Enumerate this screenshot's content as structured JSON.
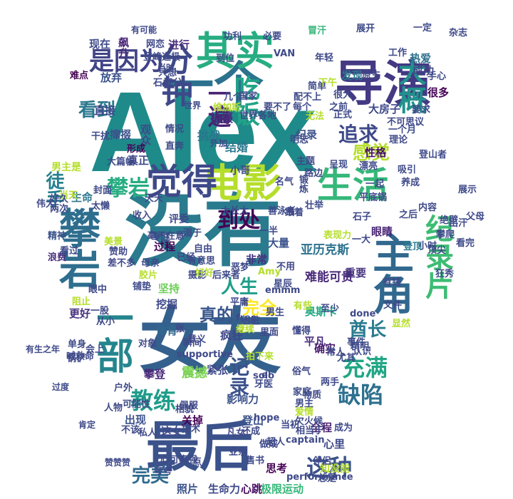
{
  "wordcloud": {
    "words": [
      {
        "text": "Alex",
        "color": "#1f8a8a",
        "big": true
      },
      {
        "text": "没有",
        "color": "#2a7b8e"
      },
      {
        "text": "女友",
        "color": "#34608d"
      },
      {
        "text": "最后",
        "color": "#3b528b"
      },
      {
        "text": "一个",
        "color": "#2c728e"
      },
      {
        "text": "导演",
        "color": "#443983"
      },
      {
        "text": "其实",
        "color": "#27ad81"
      },
      {
        "text": "电影",
        "color": "#b5de2b"
      },
      {
        "text": "觉得",
        "color": "#3e4989"
      },
      {
        "text": "生活",
        "color": "#35b779"
      },
      {
        "text": "攀岩",
        "color": "#2e6e8e"
      },
      {
        "text": "主角",
        "color": "#31688e"
      },
      {
        "text": "一部",
        "color": "#25858e"
      },
      {
        "text": "分钟",
        "color": "#3e4989"
      },
      {
        "text": "是因为",
        "color": "#414487"
      },
      {
        "text": "大概",
        "color": "#21918c"
      },
      {
        "text": "吃饭",
        "color": "#20a486"
      },
      {
        "text": "纪录片",
        "color": "#3dbc74"
      },
      {
        "text": "追求",
        "color": "#3e4989"
      },
      {
        "text": "看到",
        "color": "#2a788e"
      },
      {
        "text": "攀岩",
        "color": "#27ad81"
      },
      {
        "text": "徒手",
        "color": "#277f8e"
      },
      {
        "text": "感觉",
        "color": "#b5de2b"
      },
      {
        "text": "到处",
        "color": "#440154"
      },
      {
        "text": "人生",
        "color": "#1f9e89"
      },
      {
        "text": "完全",
        "color": "#fde725"
      },
      {
        "text": "记录",
        "color": "#3b528b"
      },
      {
        "text": "真的",
        "color": "#39568c"
      },
      {
        "text": "酋长",
        "color": "#2a7b8e"
      },
      {
        "text": "充满",
        "color": "#21a685"
      },
      {
        "text": "缺陷",
        "color": "#2d708e"
      },
      {
        "text": "教练",
        "color": "#1e9c89"
      },
      {
        "text": "这种",
        "color": "#3b528b"
      },
      {
        "text": "完美",
        "color": "#306a8e"
      },
      {
        "text": "亚历克斯",
        "color": "#2c728e"
      },
      {
        "text": "奥斯卡",
        "color": "#22a884"
      },
      {
        "text": "难能可贵",
        "color": "#482878"
      },
      {
        "text": "疯狂",
        "color": "#404688"
      },
      {
        "text": "震撼",
        "color": "#7ad151"
      },
      {
        "text": "一遍",
        "color": "#482173"
      },
      {
        "text": "现在",
        "color": "#3e4a89"
      },
      {
        "text": "飙升",
        "color": "#482677"
      },
      {
        "text": "进行",
        "color": "#472c7a"
      },
      {
        "text": "放弃",
        "color": "#3b528b"
      },
      {
        "text": "发现",
        "color": "#2a788e"
      },
      {
        "text": "成功",
        "color": "#3f4788"
      },
      {
        "text": "热爱",
        "color": "#2d708e"
      },
      {
        "text": "很多",
        "color": "#440154"
      },
      {
        "text": "拍摄",
        "color": "#472d7b"
      },
      {
        "text": "挑战",
        "color": "#2b758e"
      },
      {
        "text": "结婚",
        "color": "#2a788e"
      },
      {
        "text": "纪录",
        "color": "#3b528b"
      },
      {
        "text": "性格",
        "color": "#471063"
      },
      {
        "text": "大房子",
        "color": "#3e4989"
      },
      {
        "text": "真正",
        "color": "#3e4989"
      },
      {
        "text": "男主是",
        "color": "#b5de2b"
      },
      {
        "text": "生命",
        "color": "#2a788e"
      },
      {
        "text": "重要",
        "color": "#46327e"
      },
      {
        "text": "眼睛",
        "color": "#482475"
      },
      {
        "text": "过程",
        "color": "#440154"
      },
      {
        "text": "大量",
        "color": "#3b528b"
      },
      {
        "text": "非常",
        "color": "#46307e"
      },
      {
        "text": "坚持",
        "color": "#6ece58"
      },
      {
        "text": "挖掘",
        "color": "#3e4989"
      },
      {
        "text": "体育",
        "color": "#31688e"
      },
      {
        "text": "平凡",
        "color": "#472f7d"
      },
      {
        "text": "确实",
        "color": "#481b6d"
      },
      {
        "text": "紧张",
        "color": "#3e4989"
      },
      {
        "text": "攀登",
        "color": "#482878"
      },
      {
        "text": "出现",
        "color": "#3b528b"
      },
      {
        "text": "全程",
        "color": "#481b6d"
      },
      {
        "text": "心里",
        "color": "#3e4989"
      },
      {
        "text": "这女",
        "color": "#3e4989"
      },
      {
        "text": "关掉",
        "color": "#440154"
      },
      {
        "text": "登山",
        "color": "#3b528b"
      },
      {
        "text": "影响力",
        "color": "#3b528b"
      },
      {
        "text": "照片",
        "color": "#3b528b"
      },
      {
        "text": "生命力",
        "color": "#3e4989"
      },
      {
        "text": "心跳",
        "color": "#471063"
      },
      {
        "text": "极限运动",
        "color": "#35b779"
      },
      {
        "text": "思考",
        "color": "#440154"
      },
      {
        "text": "知没能",
        "color": "#b5de2b"
      },
      {
        "text": "更好",
        "color": "#46327e"
      },
      {
        "text": "直接",
        "color": "#3e4989"
      },
      {
        "text": "难点",
        "color": "#440154"
      },
      {
        "text": "观众",
        "color": "#3e4989"
      },
      {
        "text": "撺掇",
        "color": "#3b528b"
      },
      {
        "text": "干扰",
        "color": "#3e4989"
      },
      {
        "text": "形成",
        "color": "#440154"
      },
      {
        "text": "精神",
        "color": "#3b528b"
      },
      {
        "text": "浪费",
        "color": "#472d7b"
      },
      {
        "text": "看过",
        "color": "#3e4989"
      },
      {
        "text": "赞助",
        "color": "#3e4989"
      },
      {
        "text": "差不多",
        "color": "#3e4989"
      },
      {
        "text": "母亲",
        "color": "#3e4989"
      },
      {
        "text": "胶片",
        "color": "#b5de2b"
      },
      {
        "text": "摄影",
        "color": "#3e4989"
      },
      {
        "text": "后来者",
        "color": "#3e4989"
      },
      {
        "text": "瞬间",
        "color": "#3e4989"
      },
      {
        "text": "铺垫",
        "color": "#3e4989"
      },
      {
        "text": "阻止",
        "color": "#b5de2b"
      },
      {
        "text": "对象",
        "color": "#3e4989"
      },
      {
        "text": "人物",
        "color": "#3e4989"
      },
      {
        "text": "技术",
        "color": "#3e4989"
      },
      {
        "text": "超人",
        "color": "#3e4989"
      },
      {
        "text": "点",
        "color": "#3e4989"
      },
      {
        "text": "成为",
        "color": "#3e4989"
      },
      {
        "text": "工作",
        "color": "#3e4989"
      },
      {
        "text": "一定",
        "color": "#3e4989"
      },
      {
        "text": "内容",
        "color": "#3e4989"
      },
      {
        "text": "顶尖",
        "color": "#3e4989"
      },
      {
        "text": "攀爬",
        "color": "#3e4989"
      },
      {
        "text": "小时",
        "color": "#3e4989"
      },
      {
        "text": "登顶",
        "color": "#2a788e"
      },
      {
        "text": "冒汗",
        "color": "#35b779"
      },
      {
        "text": "年轻",
        "color": "#3e4989"
      },
      {
        "text": "VAN",
        "color": "#3e4989"
      },
      {
        "text": "小哥",
        "color": "#3e4989"
      },
      {
        "text": "大篇幅",
        "color": "#3e4989"
      },
      {
        "text": "评委",
        "color": "#3e4989"
      },
      {
        "text": "溺于",
        "color": "#3e4989"
      },
      {
        "text": "毫不在意",
        "color": "#3e4989"
      },
      {
        "text": "太长太",
        "color": "#3e4989"
      },
      {
        "text": "善泳者",
        "color": "#3e4989"
      },
      {
        "text": "表现力",
        "color": "#b5de2b"
      },
      {
        "text": "懂得",
        "color": "#3e4989"
      },
      {
        "text": "事件",
        "color": "#3e4989"
      },
      {
        "text": "两手",
        "color": "#3e4989"
      },
      {
        "text": "常人",
        "color": "#3e4989"
      },
      {
        "text": "尤其",
        "color": "#3e4989"
      },
      {
        "text": "不用",
        "color": "#3e4989"
      },
      {
        "text": "星辰",
        "color": "#3e4989"
      },
      {
        "text": "意义",
        "color": "#3e4989"
      },
      {
        "text": "物质",
        "color": "#3e4989"
      },
      {
        "text": "牙医",
        "color": "#3e4989"
      },
      {
        "text": "相当于",
        "color": "#3e4989"
      },
      {
        "text": "有钱",
        "color": "#3e4989"
      },
      {
        "text": "文件",
        "color": "#3e4989"
      },
      {
        "text": "显然",
        "color": "#b5de2b"
      },
      {
        "text": "看完",
        "color": "#3e4989"
      },
      {
        "text": "出汗",
        "color": "#3e4989"
      },
      {
        "text": "石子",
        "color": "#3e4989"
      },
      {
        "text": "要求",
        "color": "#3e4989"
      },
      {
        "text": "手心",
        "color": "#3e4989"
      },
      {
        "text": "原生",
        "color": "#3e4989"
      },
      {
        "text": "杂志",
        "color": "#3e4989"
      },
      {
        "text": "展开",
        "color": "#3e4989"
      },
      {
        "text": "必要",
        "color": "#3e4989"
      },
      {
        "text": "五分",
        "color": "#3e4989"
      },
      {
        "text": "情况",
        "color": "#3e4989"
      },
      {
        "text": "无法",
        "color": "#b5de2b"
      },
      {
        "text": "每个",
        "color": "#3e4989"
      },
      {
        "text": "简单",
        "color": "#3e4989"
      },
      {
        "text": "漂亮",
        "color": "#3e4989"
      },
      {
        "text": "吸引",
        "color": "#3e4989"
      },
      {
        "text": "养成",
        "color": "#3e4989"
      },
      {
        "text": "登山者",
        "color": "#3e4989"
      },
      {
        "text": "一个月",
        "color": "#3e4989"
      },
      {
        "text": "理论",
        "color": "#3e4989"
      },
      {
        "text": "很大",
        "color": "#3e4989"
      },
      {
        "text": "下午",
        "color": "#b5de2b"
      },
      {
        "text": "之前",
        "color": "#3e4989"
      },
      {
        "text": "正式",
        "color": "#3e4989"
      },
      {
        "text": "主题",
        "color": "#3e4989"
      },
      {
        "text": "呈现",
        "color": "#3e4989"
      },
      {
        "text": "一起",
        "color": "#3e4989"
      },
      {
        "text": "平底锅",
        "color": "#3e4989"
      },
      {
        "text": "之后",
        "color": "#3e4989"
      },
      {
        "text": "一大",
        "color": "#3e4989"
      },
      {
        "text": "路边",
        "color": "#3e4989"
      },
      {
        "text": "锻炼",
        "color": "#3e4989"
      },
      {
        "text": "一半",
        "color": "#3e4989"
      },
      {
        "text": "美景",
        "color": "#b5de2b"
      },
      {
        "text": "专注",
        "color": "#3e4989"
      },
      {
        "text": "收入",
        "color": "#3e4989"
      },
      {
        "text": "太懒",
        "color": "#3e4989"
      },
      {
        "text": "当天",
        "color": "#b5de2b"
      },
      {
        "text": "封面",
        "color": "#3e4989"
      },
      {
        "text": "好久",
        "color": "#3e4989"
      },
      {
        "text": "伟大",
        "color": "#3e4989"
      },
      {
        "text": "两次",
        "color": "#3e4989"
      },
      {
        "text": "眼中",
        "color": "#3e4989"
      },
      {
        "text": "一股",
        "color": "#3e4989"
      },
      {
        "text": "从小",
        "color": "#3e4989"
      },
      {
        "text": "会上",
        "color": "#3e4989"
      },
      {
        "text": "单身",
        "color": "#3e4989"
      },
      {
        "text": "锅铲",
        "color": "#3e4989"
      },
      {
        "text": "喊救命",
        "color": "#3e4989"
      },
      {
        "text": "户外",
        "color": "#3e4989"
      },
      {
        "text": "可能性",
        "color": "#3e4989"
      },
      {
        "text": "不该",
        "color": "#3e4989"
      },
      {
        "text": "私人",
        "color": "#3e4989"
      },
      {
        "text": "凡女",
        "color": "#3e4989"
      },
      {
        "text": "还成",
        "color": "#3e4989"
      },
      {
        "text": "当初",
        "color": "#3e4989"
      },
      {
        "text": "欠火候",
        "color": "#3e4989"
      },
      {
        "text": "业余",
        "color": "#3e4989"
      },
      {
        "text": "做成",
        "color": "#3e4989"
      },
      {
        "text": "心可真强",
        "color": "#3e4989"
      },
      {
        "text": "夸夸",
        "color": "#3e4989"
      },
      {
        "text": "售书",
        "color": "#3e4989"
      },
      {
        "text": "伴侣",
        "color": "#3e4989"
      },
      {
        "text": "总是",
        "color": "#3e4989"
      },
      {
        "text": "performance",
        "color": "#3e4989"
      },
      {
        "text": "captain",
        "color": "#3e4989"
      },
      {
        "text": "supportive",
        "color": "#3e4989"
      },
      {
        "text": "solo",
        "color": "#3e4989"
      },
      {
        "text": "free",
        "color": "#3e4989"
      },
      {
        "text": "hope",
        "color": "#3e4989"
      },
      {
        "text": "emmm",
        "color": "#3e4989"
      },
      {
        "text": "done",
        "color": "#3e4989"
      },
      {
        "text": "Amy",
        "color": "#b5de2b"
      },
      {
        "text": "el",
        "color": "#3e4989"
      },
      {
        "text": "精明",
        "color": "#3e4989"
      },
      {
        "text": "俗气",
        "color": "#3e4989"
      },
      {
        "text": "认识",
        "color": "#3e4989"
      },
      {
        "text": "家庭",
        "color": "#3e4989"
      },
      {
        "text": "男主",
        "color": "#3e4989"
      },
      {
        "text": "爱情",
        "color": "#b5de2b"
      },
      {
        "text": "男生",
        "color": "#3e4989"
      },
      {
        "text": "里面",
        "color": "#3e4989"
      },
      {
        "text": "心脏",
        "color": "#3e4989"
      },
      {
        "text": "恶梦",
        "color": "#3e4989"
      },
      {
        "text": "好好",
        "color": "#b5de2b"
      },
      {
        "text": "已经",
        "color": "#3e4989"
      },
      {
        "text": "自由",
        "color": "#3e4989"
      },
      {
        "text": "有些",
        "color": "#b5de2b"
      },
      {
        "text": "至少",
        "color": "#3e4989"
      },
      {
        "text": "狂秀",
        "color": "#3e4989"
      },
      {
        "text": "绝壁",
        "color": "#3e4989"
      },
      {
        "text": "父母",
        "color": "#3e4989"
      },
      {
        "text": "展示",
        "color": "#3e4989"
      },
      {
        "text": "不可思议",
        "color": "#3e4989"
      },
      {
        "text": "明志",
        "color": "#3e4989"
      },
      {
        "text": "名气",
        "color": "#3e4989"
      },
      {
        "text": "壮举",
        "color": "#3e4989"
      },
      {
        "text": "要不了",
        "color": "#3e4989"
      },
      {
        "text": "世界各地",
        "color": "#3e4989"
      },
      {
        "text": "国家",
        "color": "#3e4989"
      },
      {
        "text": "几个",
        "color": "#3e4989"
      },
      {
        "text": "石头",
        "color": "#3e4989"
      },
      {
        "text": "只想",
        "color": "#3e4989"
      },
      {
        "text": "网恋",
        "color": "#3e4989"
      },
      {
        "text": "登峰造极",
        "color": "#3e4989"
      },
      {
        "text": "功利",
        "color": "#3e4989"
      },
      {
        "text": "到位",
        "color": "#3e4989"
      },
      {
        "text": "直奔",
        "color": "#3e4989"
      },
      {
        "text": "天天",
        "color": "#3e4989"
      },
      {
        "text": "跟着",
        "color": "#3e4989"
      },
      {
        "text": "配不上",
        "color": "#3e4989"
      },
      {
        "text": "维加斯",
        "color": "#b5de2b"
      },
      {
        "text": "佩服",
        "color": "#3e4989"
      },
      {
        "text": "张",
        "color": "#3e4989"
      },
      {
        "text": "有意思",
        "color": "#3e4989"
      },
      {
        "text": "相貌",
        "color": "#3e4989"
      },
      {
        "text": "平庸",
        "color": "#3e4989"
      },
      {
        "text": "继续",
        "color": "#b5de2b"
      },
      {
        "text": "拍下来",
        "color": "#b5de2b"
      },
      {
        "text": "有生之年",
        "color": "#3e4989"
      },
      {
        "text": "过度",
        "color": "#3e4989"
      },
      {
        "text": "肯定",
        "color": "#3e4989"
      },
      {
        "text": "赞赞赞",
        "color": "#3e4989"
      },
      {
        "text": "有可能",
        "color": "#3e4989"
      },
      {
        "text": "当时",
        "color": "#3e4989"
      },
      {
        "text": "世界",
        "color": "#3e4989"
      },
      {
        "text": "外加",
        "color": "#3e4989"
      }
    ]
  }
}
